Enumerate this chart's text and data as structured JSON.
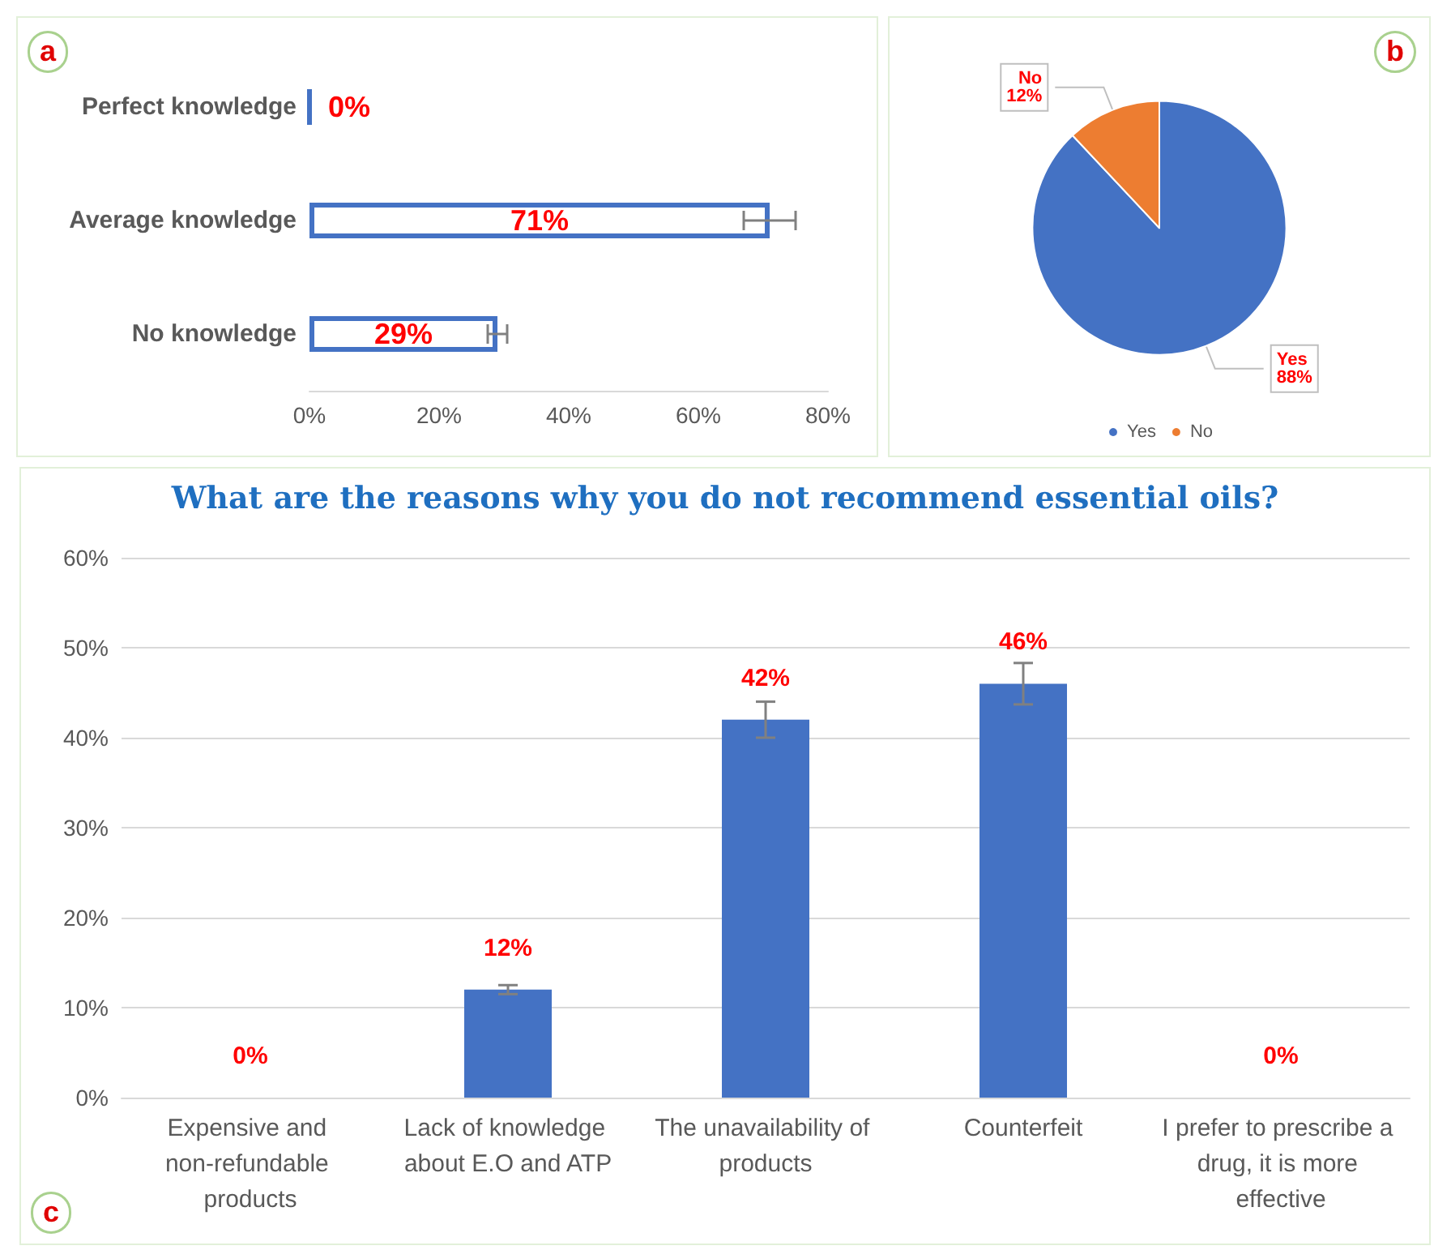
{
  "chart_data": [
    {
      "type": "bar",
      "orientation": "horizontal",
      "categories": [
        "Perfect knowledge",
        "Average knowledge",
        "No knowledge"
      ],
      "values": [
        0,
        71,
        29
      ],
      "errors": [
        null,
        4,
        1.5
      ],
      "value_labels": [
        "0%",
        "71%",
        "29%"
      ],
      "color": "#4472c4",
      "xlim": [
        0,
        80
      ],
      "xticks": [
        {
          "value": 0,
          "label": "0%"
        },
        {
          "value": 20,
          "label": "20%"
        },
        {
          "value": 40,
          "label": "40%"
        },
        {
          "value": 60,
          "label": "60%"
        },
        {
          "value": 80,
          "label": "80%"
        }
      ],
      "grid": false,
      "annotations": [
        "a"
      ]
    },
    {
      "type": "pie",
      "categories": [
        "Yes",
        "No"
      ],
      "values": [
        88,
        12
      ],
      "colors": [
        "#4472c4",
        "#ed7d31"
      ],
      "value_labels": [
        "Yes\n88%",
        "No\n12%"
      ],
      "legend": "bottom",
      "annotations": [
        "b"
      ]
    },
    {
      "type": "bar",
      "title": "What are the reasons why you do not recommend essential oils?",
      "categories": [
        "Expensive and non-refundable products",
        "Lack of knowledge about E.O and ATP",
        "The unavailability of products",
        "Counterfeit",
        "I prefer to prescribe a drug, it is more effective"
      ],
      "values": [
        0,
        12,
        42,
        46,
        0
      ],
      "errors": [
        null,
        0.5,
        2,
        2.3,
        null
      ],
      "value_labels": [
        "0%",
        "12%",
        "42%",
        "46%",
        "0%"
      ],
      "color": "#4472c4",
      "ylim": [
        0,
        60
      ],
      "yticks": [
        {
          "value": 0,
          "label": "0%"
        },
        {
          "value": 10,
          "label": "10%"
        },
        {
          "value": 20,
          "label": "20%"
        },
        {
          "value": 30,
          "label": "30%"
        },
        {
          "value": 40,
          "label": "40%"
        },
        {
          "value": 50,
          "label": "50%"
        },
        {
          "value": 60,
          "label": "60%"
        }
      ],
      "grid": "y",
      "annotations": [
        "c"
      ]
    }
  ]
}
